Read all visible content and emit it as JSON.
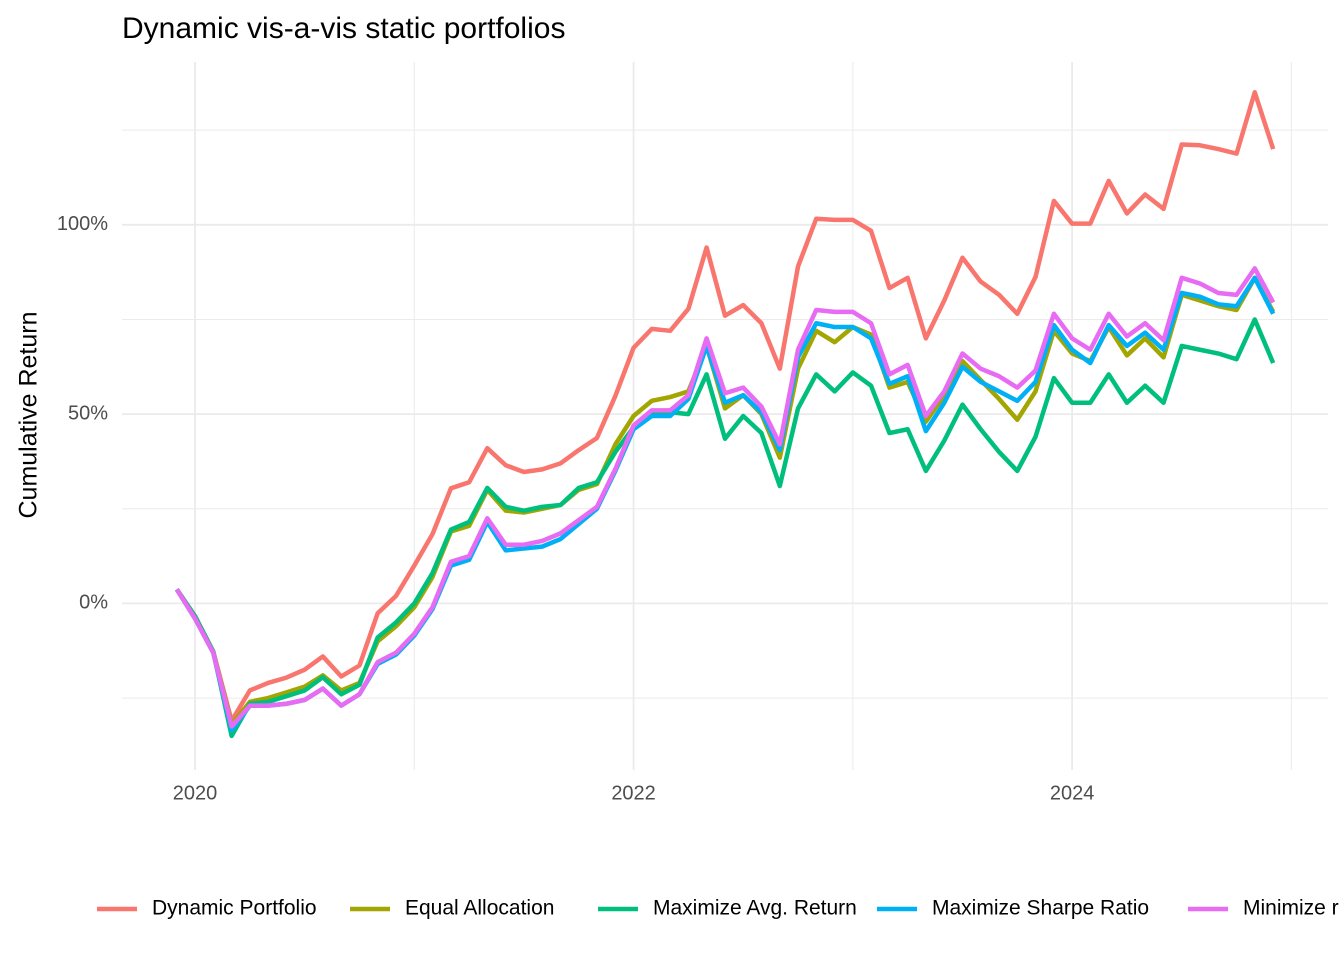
{
  "chart_data": {
    "type": "line",
    "title": "Dynamic vis-a-vis static portfolios",
    "y_label": "Cumulative Return",
    "x": [
      2019.917,
      2020,
      2020.083,
      2020.167,
      2020.25,
      2020.333,
      2020.417,
      2020.5,
      2020.583,
      2020.667,
      2020.75,
      2020.833,
      2020.917,
      2021,
      2021.083,
      2021.167,
      2021.25,
      2021.333,
      2021.417,
      2021.5,
      2021.583,
      2021.667,
      2021.75,
      2021.833,
      2021.917,
      2022,
      2022.083,
      2022.167,
      2022.25,
      2022.333,
      2022.417,
      2022.5,
      2022.583,
      2022.667,
      2022.75,
      2022.833,
      2022.917,
      2023,
      2023.083,
      2023.167,
      2023.25,
      2023.333,
      2023.417,
      2023.5,
      2023.583,
      2023.667,
      2023.75,
      2023.833,
      2023.917,
      2024,
      2024.083,
      2024.167,
      2024.25,
      2024.333,
      2024.417,
      2024.5,
      2024.583,
      2024.667,
      2024.75,
      2024.833,
      2024.917
    ],
    "xlim": [
      2019.667,
      2025.167
    ],
    "xticks": [
      2020,
      2022,
      2024
    ],
    "ylim": [
      -44,
      143
    ],
    "yticks": [
      {
        "value": 0,
        "label": "0%"
      },
      {
        "value": 50,
        "label": "50%"
      },
      {
        "value": 100,
        "label": "100%"
      }
    ],
    "grid": true,
    "legend": "bottom",
    "series": [
      {
        "name": "Dynamic Portfolio",
        "color": "#F8766D",
        "values": [
          3.7,
          -3.4,
          -12.7,
          -31,
          -23,
          -21,
          -19.6,
          -17.5,
          -14,
          -19.3,
          -16.4,
          -2.6,
          2,
          10,
          18.3,
          30.4,
          32,
          41,
          36.5,
          34.7,
          35.4,
          37,
          40.5,
          43.7,
          54.8,
          67.5,
          72.5,
          72,
          77.8,
          94,
          76,
          78.8,
          74,
          62,
          89,
          101.6,
          101.3,
          101.3,
          98.4,
          83.3,
          86,
          70,
          80,
          91.3,
          85,
          81.5,
          76.5,
          86.2,
          106.3,
          100.3,
          100.3,
          111.6,
          103,
          108,
          104.2,
          121.2,
          121,
          120,
          118.8,
          135,
          120
        ]
      },
      {
        "name": "Equal Allocation",
        "color": "#A3A500",
        "values": [
          3.7,
          -3.4,
          -12.7,
          -32,
          -26,
          -25,
          -23.5,
          -22,
          -19,
          -23,
          -21,
          -10,
          -6,
          -1,
          7,
          19,
          20.5,
          30,
          24.5,
          24,
          25,
          26,
          30,
          31.5,
          42,
          49.5,
          53.5,
          54.5,
          56,
          68,
          51.5,
          55,
          50,
          38.5,
          62,
          72,
          69,
          73,
          71,
          57,
          58.5,
          48,
          55,
          64,
          59,
          54,
          48.5,
          56,
          72,
          66,
          64,
          73,
          65.5,
          70,
          65,
          81.5,
          80,
          78.5,
          77.5,
          86,
          77
        ]
      },
      {
        "name": "Maximize Avg. Return",
        "color": "#00BF7D",
        "values": [
          3.7,
          -3.4,
          -12.7,
          -35,
          -26.5,
          -26,
          -24.5,
          -23,
          -19.5,
          -24,
          -21.5,
          -9,
          -5,
          0,
          8,
          19.5,
          21.5,
          30.5,
          25.5,
          24.5,
          25.5,
          26,
          30.5,
          32,
          40,
          46.5,
          50.5,
          50.5,
          50,
          60.5,
          43.5,
          49.5,
          45,
          31,
          51.5,
          60.5,
          56,
          61,
          57.5,
          45,
          46,
          35,
          43,
          52.5,
          46,
          40,
          35,
          44,
          59.5,
          53,
          53,
          60.5,
          53,
          57.5,
          53,
          68,
          67,
          66,
          64.5,
          75,
          63.5
        ]
      },
      {
        "name": "Maximize Sharpe Ratio",
        "color": "#00B0F6",
        "values": [
          3.7,
          -4,
          -13,
          -33.5,
          -27,
          -27,
          -26.5,
          -25.5,
          -22.5,
          -27,
          -24,
          -16,
          -13.5,
          -8.5,
          -1.5,
          10,
          11.5,
          21.5,
          14,
          14.5,
          15,
          17,
          21,
          25,
          35,
          46,
          49.5,
          49.5,
          54,
          68,
          53,
          55,
          50.5,
          40.5,
          65,
          74,
          73,
          73,
          70,
          58,
          60,
          45.5,
          53,
          62.5,
          58.5,
          56,
          53.5,
          58.5,
          73.5,
          67,
          63.5,
          73.5,
          68,
          71.5,
          67,
          82,
          81,
          79,
          78.5,
          86,
          76.5
        ]
      },
      {
        "name": "Minimize r",
        "color": "#E76BF3",
        "values": [
          3.7,
          -4,
          -13,
          -32.5,
          -27,
          -27,
          -26.5,
          -25.5,
          -22.5,
          -27,
          -24,
          -15.5,
          -13,
          -8,
          -1,
          11,
          12.5,
          22.5,
          15.5,
          15.5,
          16.5,
          18.5,
          22,
          25.5,
          35.5,
          47,
          51,
          51,
          55,
          70,
          55.5,
          57,
          52,
          42,
          67,
          77.5,
          77,
          77,
          74,
          60.5,
          63,
          49.5,
          56,
          66,
          62,
          60,
          57,
          61.5,
          76.5,
          70,
          67,
          76.5,
          70.5,
          74,
          69.5,
          86,
          84.5,
          82,
          81.5,
          88.5,
          79.5
        ]
      }
    ]
  }
}
